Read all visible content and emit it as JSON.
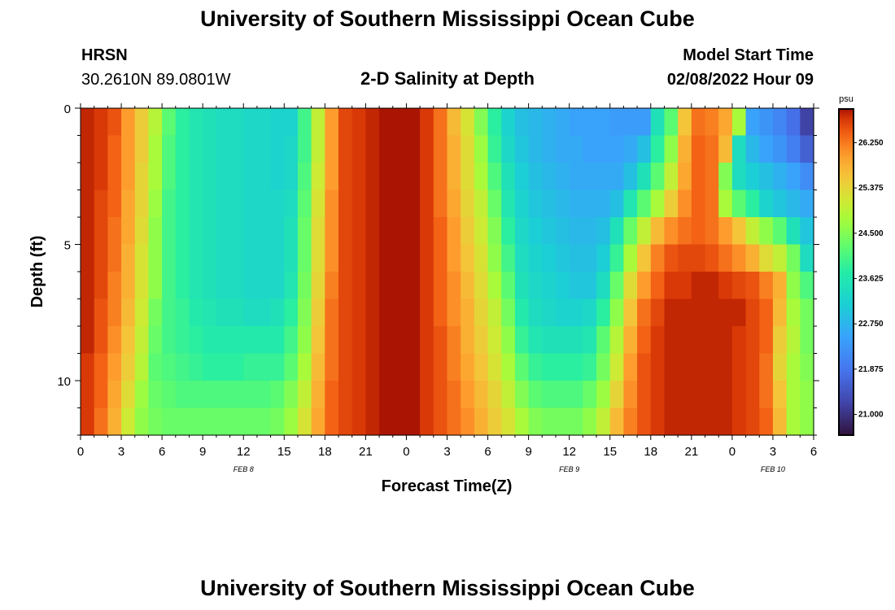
{
  "header": {
    "title": "University of Southern Mississippi Ocean Cube",
    "station": "HRSN",
    "coords": "30.2610N  89.0801W",
    "plot_title": "2-D Salinity at Depth",
    "model_label": "Model Start Time",
    "model_time": "02/08/2022 Hour 09"
  },
  "footer": {
    "title": "University of Southern Mississippi Ocean Cube"
  },
  "chart_data": {
    "type": "heatmap",
    "title": "2-D Salinity at Depth",
    "xlabel": "Forecast Time(Z)",
    "ylabel": "Depth (ft)",
    "x_hours_range": [
      0,
      54
    ],
    "x_tick_hours": [
      0,
      3,
      6,
      9,
      12,
      15,
      18,
      21,
      24,
      27,
      30,
      33,
      36,
      39,
      42,
      45,
      48,
      51,
      54
    ],
    "x_tick_labels": [
      "0",
      "3",
      "6",
      "9",
      "12",
      "15",
      "18",
      "21",
      "0",
      "3",
      "6",
      "9",
      "12",
      "15",
      "18",
      "21",
      "0",
      "3",
      "6"
    ],
    "date_labels": [
      {
        "hour": 12,
        "text": "FEB 8"
      },
      {
        "hour": 36,
        "text": "FEB 9"
      },
      {
        "hour": 51,
        "text": "FEB 10"
      }
    ],
    "y_range_ft": [
      0,
      12
    ],
    "y_tick_values": [
      0,
      5,
      10
    ],
    "y_tick_labels": [
      "0",
      "5",
      "10"
    ],
    "colorbar": {
      "unit": "psu",
      "min": 20.6,
      "max": 26.9,
      "tick_values": [
        21.0,
        21.875,
        22.75,
        23.625,
        24.5,
        25.375,
        26.25
      ],
      "tick_labels": [
        "21.000",
        "21.875",
        "22.750",
        "23.625",
        "24.500",
        "25.375",
        "26.250"
      ]
    },
    "grid": false,
    "columns": 54,
    "depth_rows": 12,
    "values": [
      [
        26.8,
        26.7,
        26.5,
        26.0,
        25.5,
        24.9,
        24.2,
        23.8,
        23.6,
        23.5,
        23.4,
        23.4,
        23.3,
        23.3,
        23.2,
        23.2,
        24.0,
        25.0,
        26.0,
        26.6,
        26.7,
        26.8,
        26.9,
        26.9,
        26.9,
        26.7,
        26.3,
        25.7,
        25.2,
        24.5,
        23.8,
        23.2,
        22.9,
        22.8,
        22.7,
        22.6,
        22.5,
        22.5,
        22.5,
        22.4,
        22.4,
        22.4,
        23.5,
        24.2,
        25.6,
        26.3,
        26.2,
        25.9,
        24.8,
        22.5,
        22.3,
        22.1,
        21.8,
        21.2
      ],
      [
        26.8,
        26.7,
        26.4,
        26.0,
        25.5,
        24.8,
        24.1,
        23.8,
        23.6,
        23.5,
        23.4,
        23.4,
        23.3,
        23.3,
        23.2,
        23.3,
        24.0,
        25.0,
        26.0,
        26.6,
        26.7,
        26.8,
        26.9,
        26.9,
        26.9,
        26.7,
        26.3,
        25.8,
        25.3,
        24.7,
        23.9,
        23.3,
        23.0,
        22.8,
        22.7,
        22.6,
        22.6,
        22.5,
        22.5,
        22.5,
        22.6,
        22.9,
        23.8,
        24.6,
        25.8,
        26.4,
        26.3,
        25.7,
        23.4,
        22.8,
        22.5,
        22.3,
        22.0,
        21.6
      ],
      [
        26.8,
        26.7,
        26.4,
        26.0,
        25.4,
        24.8,
        24.1,
        23.8,
        23.6,
        23.5,
        23.4,
        23.4,
        23.3,
        23.3,
        23.2,
        23.3,
        24.1,
        25.1,
        26.0,
        26.6,
        26.7,
        26.8,
        26.9,
        26.9,
        26.9,
        26.7,
        26.3,
        25.8,
        25.3,
        24.8,
        24.1,
        23.5,
        23.1,
        22.9,
        22.8,
        22.7,
        22.6,
        22.6,
        22.6,
        22.6,
        22.9,
        23.5,
        24.2,
        25.0,
        25.9,
        26.4,
        26.3,
        24.5,
        23.4,
        23.1,
        22.9,
        22.7,
        22.5,
        22.2
      ],
      [
        26.8,
        26.6,
        26.4,
        25.9,
        25.4,
        24.7,
        24.0,
        23.8,
        23.6,
        23.5,
        23.4,
        23.4,
        23.3,
        23.3,
        23.3,
        23.4,
        24.2,
        25.2,
        26.1,
        26.6,
        26.7,
        26.8,
        26.9,
        26.9,
        26.9,
        26.7,
        26.3,
        25.9,
        25.4,
        25.0,
        24.3,
        23.6,
        23.2,
        23.0,
        22.9,
        22.8,
        22.7,
        22.7,
        22.7,
        22.9,
        23.6,
        24.2,
        24.8,
        25.5,
        26.1,
        26.4,
        26.3,
        24.8,
        24.2,
        23.8,
        23.2,
        23.0,
        22.8,
        22.6
      ],
      [
        26.8,
        26.6,
        26.3,
        25.9,
        25.3,
        24.6,
        24.0,
        23.8,
        23.6,
        23.5,
        23.4,
        23.4,
        23.3,
        23.3,
        23.3,
        23.5,
        24.3,
        25.3,
        26.1,
        26.6,
        26.7,
        26.8,
        26.9,
        26.9,
        26.9,
        26.7,
        26.4,
        26.0,
        25.5,
        25.1,
        24.5,
        23.8,
        23.3,
        23.1,
        23.0,
        22.9,
        22.8,
        22.8,
        22.9,
        23.5,
        24.3,
        25.0,
        25.7,
        26.1,
        26.3,
        26.4,
        26.3,
        26.0,
        25.6,
        25.0,
        24.6,
        24.2,
        23.5,
        23.0
      ],
      [
        26.8,
        26.6,
        26.3,
        25.8,
        25.2,
        24.6,
        24.0,
        23.8,
        23.6,
        23.5,
        23.4,
        23.4,
        23.3,
        23.3,
        23.3,
        23.5,
        24.3,
        25.3,
        26.1,
        26.6,
        26.7,
        26.8,
        26.9,
        26.9,
        26.9,
        26.7,
        26.4,
        26.0,
        25.6,
        25.2,
        24.6,
        24.0,
        23.4,
        23.2,
        23.1,
        23.0,
        22.9,
        22.9,
        23.1,
        23.9,
        24.8,
        25.6,
        26.2,
        26.5,
        26.6,
        26.6,
        26.5,
        26.3,
        26.1,
        25.8,
        25.3,
        25.0,
        24.4,
        23.4
      ],
      [
        26.8,
        26.6,
        26.2,
        25.8,
        25.2,
        24.6,
        24.0,
        23.8,
        23.6,
        23.5,
        23.4,
        23.4,
        23.3,
        23.3,
        23.3,
        23.6,
        24.4,
        25.4,
        26.2,
        26.6,
        26.7,
        26.8,
        26.9,
        26.9,
        26.9,
        26.7,
        26.4,
        26.1,
        25.7,
        25.3,
        24.8,
        24.2,
        23.5,
        23.3,
        23.2,
        23.1,
        23.0,
        23.0,
        23.4,
        24.3,
        25.3,
        26.0,
        26.4,
        26.7,
        26.7,
        26.8,
        26.8,
        26.7,
        26.6,
        26.5,
        26.2,
        25.8,
        24.6,
        24.1
      ],
      [
        26.8,
        26.5,
        26.2,
        25.7,
        25.1,
        24.4,
        24.0,
        23.9,
        23.7,
        23.6,
        23.5,
        23.5,
        23.4,
        23.4,
        23.5,
        23.8,
        24.5,
        25.5,
        26.3,
        26.6,
        26.7,
        26.8,
        26.9,
        26.9,
        26.9,
        26.7,
        26.4,
        26.1,
        25.8,
        25.4,
        25.0,
        24.4,
        23.7,
        23.4,
        23.3,
        23.2,
        23.2,
        23.3,
        23.8,
        24.6,
        25.6,
        26.3,
        26.6,
        26.8,
        26.8,
        26.8,
        26.8,
        26.8,
        26.8,
        26.6,
        26.4,
        25.7,
        24.8,
        24.4
      ],
      [
        26.8,
        26.5,
        26.1,
        25.6,
        25.0,
        24.3,
        24.0,
        23.9,
        23.8,
        23.7,
        23.7,
        23.7,
        23.7,
        23.7,
        23.7,
        24.0,
        24.6,
        25.6,
        26.3,
        26.6,
        26.7,
        26.8,
        26.9,
        26.9,
        26.9,
        26.7,
        26.5,
        26.2,
        25.8,
        25.5,
        25.1,
        24.6,
        23.9,
        23.6,
        23.5,
        23.5,
        23.5,
        23.6,
        24.2,
        24.9,
        25.8,
        26.4,
        26.7,
        26.8,
        26.8,
        26.8,
        26.8,
        26.8,
        26.7,
        26.6,
        26.4,
        25.5,
        24.9,
        24.4
      ],
      [
        26.7,
        26.4,
        26.0,
        25.5,
        24.9,
        24.2,
        24.1,
        24.0,
        23.9,
        23.8,
        23.8,
        23.8,
        23.9,
        23.9,
        23.9,
        24.2,
        24.8,
        25.7,
        26.3,
        26.6,
        26.7,
        26.8,
        26.9,
        26.9,
        26.9,
        26.7,
        26.5,
        26.2,
        25.9,
        25.6,
        25.2,
        24.8,
        24.2,
        23.9,
        23.8,
        23.8,
        23.8,
        23.9,
        24.4,
        25.1,
        26.0,
        26.5,
        26.7,
        26.8,
        26.8,
        26.8,
        26.8,
        26.8,
        26.7,
        26.6,
        26.3,
        25.4,
        24.8,
        24.5
      ],
      [
        26.7,
        26.4,
        25.9,
        25.3,
        24.7,
        24.3,
        24.2,
        24.1,
        24.1,
        24.1,
        24.1,
        24.1,
        24.1,
        24.1,
        24.2,
        24.5,
        25.0,
        25.8,
        26.4,
        26.6,
        26.7,
        26.8,
        26.9,
        26.9,
        26.9,
        26.7,
        26.5,
        26.3,
        26.0,
        25.7,
        25.4,
        25.0,
        24.5,
        24.2,
        24.1,
        24.1,
        24.1,
        24.3,
        24.7,
        25.4,
        26.1,
        26.5,
        26.7,
        26.8,
        26.8,
        26.8,
        26.8,
        26.8,
        26.7,
        26.6,
        26.3,
        25.6,
        24.8,
        24.6
      ],
      [
        26.7,
        26.3,
        25.8,
        25.1,
        24.6,
        24.4,
        24.3,
        24.3,
        24.3,
        24.3,
        24.3,
        24.3,
        24.3,
        24.3,
        24.4,
        24.7,
        25.2,
        25.9,
        26.4,
        26.6,
        26.7,
        26.8,
        26.9,
        26.9,
        26.9,
        26.7,
        26.5,
        26.3,
        26.1,
        25.8,
        25.5,
        25.2,
        24.8,
        24.5,
        24.4,
        24.4,
        24.4,
        24.6,
        25.0,
        25.7,
        26.2,
        26.5,
        26.7,
        26.8,
        26.8,
        26.8,
        26.8,
        26.8,
        26.7,
        26.6,
        26.4,
        25.7,
        24.8,
        24.6
      ]
    ]
  }
}
